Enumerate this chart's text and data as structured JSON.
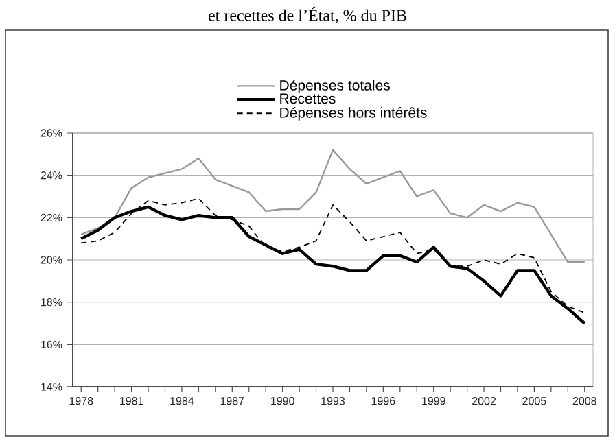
{
  "chart_data": {
    "type": "line",
    "title": "et recettes de l’État, % du PIB",
    "x": [
      1978,
      1979,
      1980,
      1981,
      1982,
      1983,
      1984,
      1985,
      1986,
      1987,
      1988,
      1989,
      1990,
      1991,
      1992,
      1993,
      1994,
      1995,
      1996,
      1997,
      1998,
      1999,
      2000,
      2001,
      2002,
      2003,
      2004,
      2005,
      2006,
      2007,
      2008
    ],
    "series": [
      {
        "name": "Dépenses totales",
        "color": "#999999",
        "line_style": "solid",
        "values": [
          21.2,
          21.5,
          22.0,
          23.4,
          23.9,
          24.1,
          24.3,
          24.8,
          23.8,
          23.5,
          23.2,
          22.3,
          22.4,
          22.4,
          23.2,
          25.2,
          24.3,
          23.6,
          23.9,
          24.2,
          23.0,
          23.3,
          22.2,
          22.0,
          22.6,
          22.3,
          22.7,
          22.5,
          21.2,
          19.9,
          19.9
        ]
      },
      {
        "name": "Recettes",
        "color": "#000000",
        "line_style": "solid",
        "values": [
          21.0,
          21.4,
          22.0,
          22.3,
          22.5,
          22.1,
          21.9,
          22.1,
          22.0,
          22.0,
          21.1,
          20.7,
          20.3,
          20.5,
          19.8,
          19.7,
          19.5,
          19.5,
          20.2,
          20.2,
          19.9,
          20.6,
          19.7,
          19.6,
          19.0,
          18.3,
          19.5,
          19.5,
          18.3,
          17.7,
          17.0
        ]
      },
      {
        "name": "Dépenses hors intérêts",
        "color": "#000000",
        "line_style": "dashed",
        "values": [
          20.8,
          20.9,
          21.3,
          22.2,
          22.8,
          22.6,
          22.7,
          22.9,
          22.1,
          21.9,
          21.6,
          20.6,
          20.4,
          20.6,
          20.9,
          22.6,
          21.8,
          20.9,
          21.1,
          21.3,
          20.3,
          20.5,
          19.7,
          19.7,
          20.0,
          19.8,
          20.3,
          20.1,
          18.5,
          17.8,
          17.5
        ]
      }
    ],
    "xlim": [
      1977.5,
      2008.5
    ],
    "xticks": [
      1978,
      1981,
      1984,
      1987,
      1990,
      1993,
      1996,
      1999,
      2002,
      2005,
      2008
    ],
    "ylim": [
      14,
      26
    ],
    "yticks": [
      {
        "value": 14,
        "label": "14%"
      },
      {
        "value": 16,
        "label": "16%"
      },
      {
        "value": 18,
        "label": "18%"
      },
      {
        "value": 20,
        "label": "20%"
      },
      {
        "value": 22,
        "label": "22%"
      },
      {
        "value": 24,
        "label": "24%"
      },
      {
        "value": 26,
        "label": "26%"
      }
    ],
    "grid": "y",
    "legend": "top",
    "marker": "none"
  }
}
